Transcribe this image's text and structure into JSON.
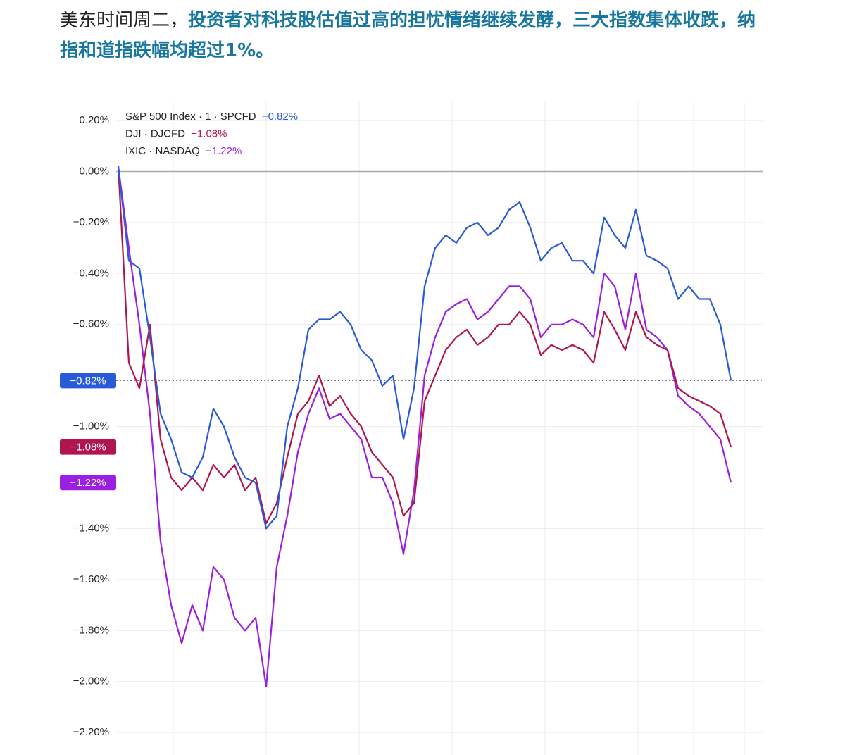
{
  "intro": "美东时间周二，",
  "highlight": "投资者对科技股估值过高的担忧情绪继续发酵，三大指数集体收跌，纳指和道指跌幅均超过1%。",
  "chart_data": {
    "type": "line",
    "ylim": [
      -2.288,
      0.272
    ],
    "yticks": [
      {
        "value": 0.2,
        "label": "0.20%"
      },
      {
        "value": 0,
        "label": "0.00%"
      },
      {
        "value": -0.2,
        "label": "−0.20%"
      },
      {
        "value": -0.4,
        "label": "−0.40%"
      },
      {
        "value": -0.6,
        "label": "−0.60%"
      },
      {
        "value": -1.0,
        "label": "−1.00%"
      },
      {
        "value": -1.4,
        "label": "−1.40%"
      },
      {
        "value": -1.6,
        "label": "−1.60%"
      },
      {
        "value": -1.8,
        "label": "−1.80%"
      },
      {
        "value": -2.0,
        "label": "−2.00%"
      },
      {
        "value": -2.2,
        "label": "−2.20%"
      }
    ],
    "grid": true,
    "series": [
      {
        "name": "S&P 500 Index · 1 · SPCFD",
        "color": "#2a5bd7",
        "last_value": -0.82,
        "last_label": "−0.82%",
        "values": [
          0.02,
          -0.35,
          -0.38,
          -0.65,
          -0.95,
          -1.05,
          -1.18,
          -1.2,
          -1.12,
          -0.93,
          -1.0,
          -1.12,
          -1.2,
          -1.22,
          -1.4,
          -1.35,
          -1.0,
          -0.85,
          -0.62,
          -0.58,
          -0.58,
          -0.55,
          -0.6,
          -0.7,
          -0.74,
          -0.84,
          -0.8,
          -1.05,
          -0.85,
          -0.45,
          -0.3,
          -0.25,
          -0.28,
          -0.22,
          -0.2,
          -0.25,
          -0.22,
          -0.15,
          -0.12,
          -0.22,
          -0.35,
          -0.3,
          -0.28,
          -0.35,
          -0.35,
          -0.4,
          -0.18,
          -0.25,
          -0.3,
          -0.15,
          -0.33,
          -0.35,
          -0.38,
          -0.5,
          -0.45,
          -0.5,
          -0.5,
          -0.6,
          -0.82
        ]
      },
      {
        "name": "DJI · DJCFD",
        "color": "#b0154f",
        "last_value": -1.08,
        "last_label": "−1.08%",
        "values": [
          0.02,
          -0.75,
          -0.85,
          -0.6,
          -1.05,
          -1.2,
          -1.25,
          -1.2,
          -1.25,
          -1.15,
          -1.2,
          -1.15,
          -1.25,
          -1.2,
          -1.38,
          -1.3,
          -1.12,
          -0.95,
          -0.9,
          -0.8,
          -0.92,
          -0.88,
          -0.95,
          -1.0,
          -1.1,
          -1.15,
          -1.2,
          -1.35,
          -1.3,
          -0.9,
          -0.8,
          -0.7,
          -0.65,
          -0.62,
          -0.68,
          -0.65,
          -0.6,
          -0.6,
          -0.55,
          -0.6,
          -0.72,
          -0.68,
          -0.7,
          -0.68,
          -0.7,
          -0.75,
          -0.55,
          -0.62,
          -0.7,
          -0.55,
          -0.65,
          -0.68,
          -0.7,
          -0.85,
          -0.88,
          -0.9,
          -0.92,
          -0.95,
          -1.08
        ]
      },
      {
        "name": "IXIC · NASDAQ",
        "color": "#9b1fe0",
        "last_value": -1.22,
        "last_label": "−1.22%",
        "values": [
          0.02,
          -0.3,
          -0.6,
          -0.95,
          -1.45,
          -1.7,
          -1.85,
          -1.7,
          -1.8,
          -1.55,
          -1.6,
          -1.75,
          -1.8,
          -1.75,
          -2.02,
          -1.55,
          -1.35,
          -1.1,
          -0.95,
          -0.85,
          -0.97,
          -0.95,
          -1.0,
          -1.05,
          -1.2,
          -1.2,
          -1.3,
          -1.5,
          -1.25,
          -0.8,
          -0.65,
          -0.55,
          -0.52,
          -0.5,
          -0.58,
          -0.55,
          -0.5,
          -0.45,
          -0.45,
          -0.5,
          -0.65,
          -0.6,
          -0.6,
          -0.58,
          -0.6,
          -0.65,
          -0.4,
          -0.45,
          -0.62,
          -0.4,
          -0.62,
          -0.65,
          -0.7,
          -0.88,
          -0.92,
          -0.95,
          -1.0,
          -1.05,
          -1.22
        ]
      }
    ]
  }
}
